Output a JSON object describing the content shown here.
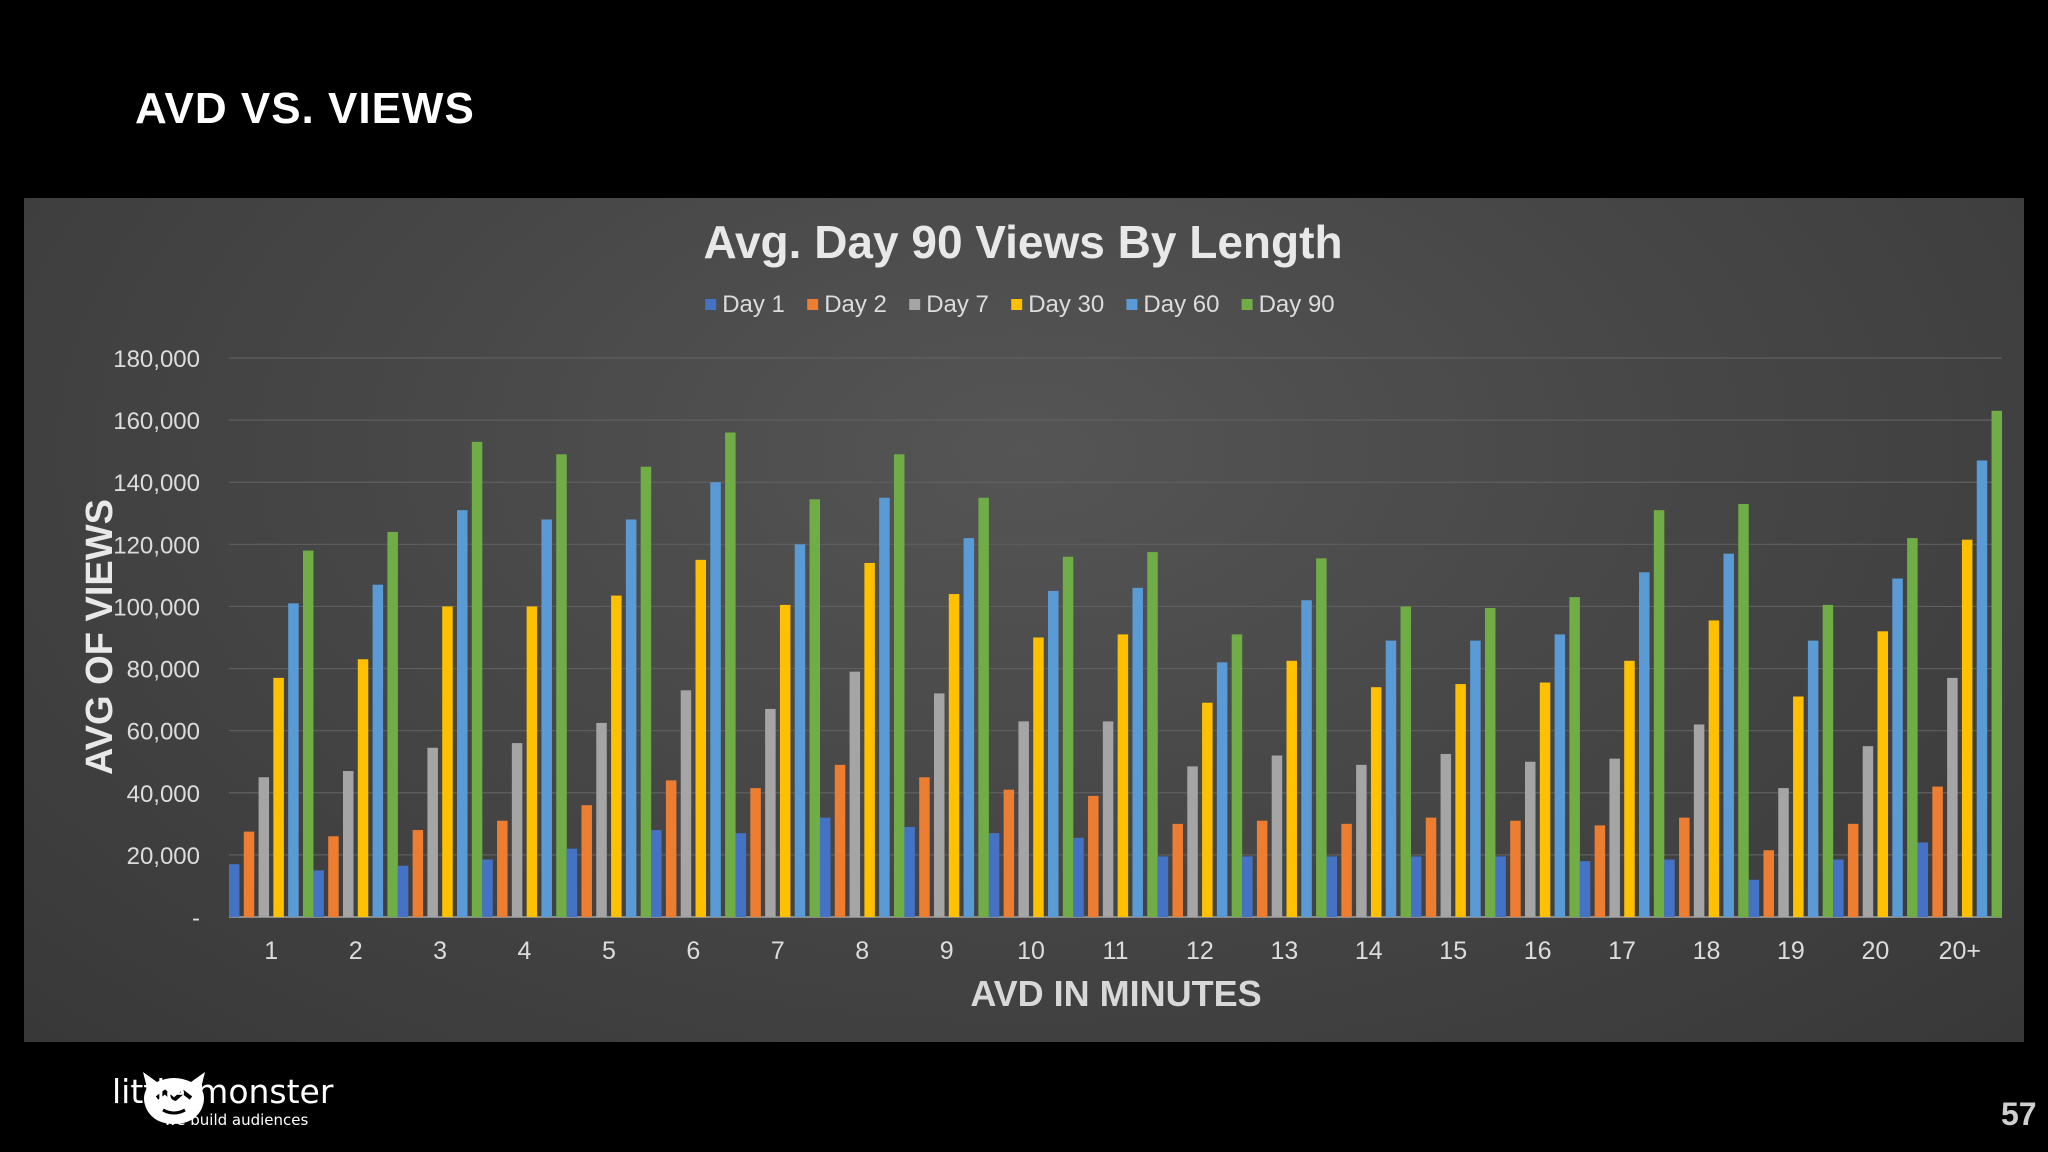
{
  "slide": {
    "title": "AVD VS. VIEWS",
    "page_number": "57",
    "logo_name": "little monster",
    "logo_tagline": "we build audiences",
    "logo_icon": "monster-face-icon"
  },
  "chart_data": {
    "type": "bar",
    "title": "Avg. Day 90 Views By Length",
    "xlabel": "AVD IN MINUTES",
    "ylabel": "AVG OF VIEWS",
    "ylim": [
      0,
      180000
    ],
    "yticks": [
      {
        "value": 0,
        "label": "-"
      },
      {
        "value": 20000,
        "label": "20,000"
      },
      {
        "value": 40000,
        "label": "40,000"
      },
      {
        "value": 60000,
        "label": "60,000"
      },
      {
        "value": 80000,
        "label": "80,000"
      },
      {
        "value": 100000,
        "label": "100,000"
      },
      {
        "value": 120000,
        "label": "120,000"
      },
      {
        "value": 140000,
        "label": "140,000"
      },
      {
        "value": 160000,
        "label": "160,000"
      },
      {
        "value": 180000,
        "label": "180,000"
      }
    ],
    "grid": true,
    "legend_position": "top-center",
    "categories": [
      "1",
      "2",
      "3",
      "4",
      "5",
      "6",
      "7",
      "8",
      "9",
      "10",
      "11",
      "12",
      "13",
      "14",
      "15",
      "16",
      "17",
      "18",
      "19",
      "20",
      "20+"
    ],
    "series": [
      {
        "name": "Day 1",
        "color": "#4472C4",
        "values": [
          17000,
          15000,
          16500,
          18500,
          22000,
          28000,
          27000,
          32000,
          29000,
          27000,
          25500,
          19500,
          19500,
          19500,
          19500,
          19500,
          18000,
          18500,
          12000,
          18500,
          24000
        ]
      },
      {
        "name": "Day 2",
        "color": "#ED7D31",
        "values": [
          27500,
          26000,
          28000,
          31000,
          36000,
          44000,
          41500,
          49000,
          45000,
          41000,
          39000,
          30000,
          31000,
          30000,
          32000,
          31000,
          29500,
          32000,
          21500,
          30000,
          42000
        ]
      },
      {
        "name": "Day 7",
        "color": "#A5A5A5",
        "values": [
          45000,
          47000,
          54500,
          56000,
          62500,
          73000,
          67000,
          79000,
          72000,
          63000,
          63000,
          48500,
          52000,
          49000,
          52500,
          50000,
          51000,
          62000,
          41500,
          55000,
          77000
        ]
      },
      {
        "name": "Day 30",
        "color": "#FFC000",
        "values": [
          77000,
          83000,
          100000,
          100000,
          103500,
          115000,
          100500,
          114000,
          104000,
          90000,
          91000,
          69000,
          82500,
          74000,
          75000,
          75500,
          82500,
          95500,
          71000,
          92000,
          121500
        ]
      },
      {
        "name": "Day 60",
        "color": "#5B9BD5",
        "values": [
          101000,
          107000,
          131000,
          128000,
          128000,
          140000,
          120000,
          135000,
          122000,
          105000,
          106000,
          82000,
          102000,
          89000,
          89000,
          91000,
          111000,
          117000,
          89000,
          109000,
          147000
        ]
      },
      {
        "name": "Day 90",
        "color": "#70AD47",
        "values": [
          118000,
          124000,
          153000,
          149000,
          145000,
          156000,
          134500,
          149000,
          135000,
          116000,
          117500,
          91000,
          115500,
          100000,
          99500,
          103000,
          131000,
          133000,
          100500,
          122000,
          163000
        ]
      }
    ]
  }
}
